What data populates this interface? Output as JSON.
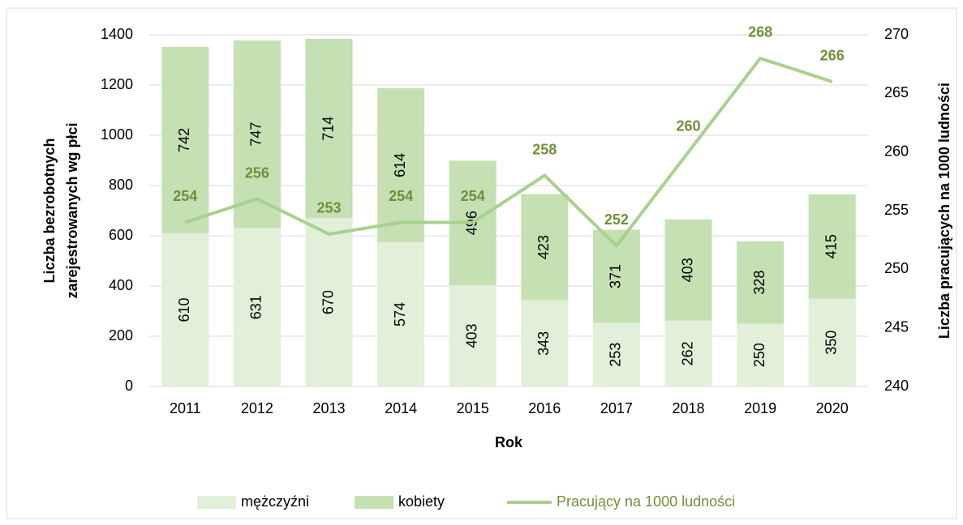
{
  "chart_data": {
    "type": "bar_line",
    "xlabel": "Rok",
    "ylabel": [
      "Liczba bezrobotnych",
      "zarejestrowanych wg płci"
    ],
    "y2label": "Liczba pracujących na 1000 ludności",
    "categories": [
      "2011",
      "2012",
      "2013",
      "2014",
      "2015",
      "2016",
      "2017",
      "2018",
      "2019",
      "2020"
    ],
    "series": [
      {
        "name": "mężczyźni",
        "type": "bar",
        "color": "#e2efd9",
        "values": [
          610,
          631,
          670,
          574,
          403,
          343,
          253,
          262,
          250,
          350
        ]
      },
      {
        "name": "kobiety",
        "type": "bar",
        "color": "#c5e0b3",
        "values": [
          742,
          747,
          714,
          614,
          496,
          423,
          371,
          403,
          328,
          415
        ]
      },
      {
        "name": "Pracujący na 1000 ludności",
        "type": "line",
        "axis": "y2",
        "color": "#a9d18e",
        "label_color": "#70903a",
        "values": [
          254,
          256,
          253,
          254,
          254,
          258,
          252,
          260,
          268,
          266
        ]
      }
    ],
    "ylim": [
      0,
      1400
    ],
    "yticks": [
      0,
      200,
      400,
      600,
      800,
      1000,
      1200,
      1400
    ],
    "y2lim": [
      240,
      270
    ],
    "y2ticks": [
      240,
      245,
      250,
      255,
      260,
      265,
      270
    ],
    "grid": true,
    "legend": "bottom"
  }
}
